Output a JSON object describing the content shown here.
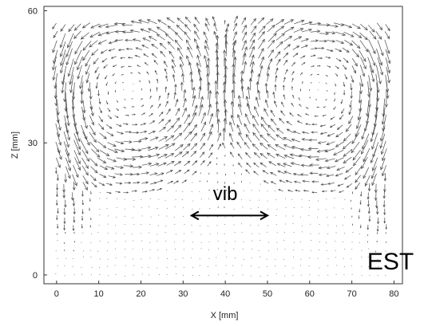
{
  "chart_data": {
    "type": "quiver",
    "xlabel": "X [mm]",
    "ylabel": "Z [mm]",
    "xlim": [
      -3,
      82
    ],
    "ylim": [
      -2,
      61
    ],
    "xticks": [
      "0",
      "10",
      "20",
      "30",
      "40",
      "50",
      "60",
      "70",
      "80"
    ],
    "yticks": [
      "0",
      "30",
      "60"
    ],
    "grid": false,
    "annotations": [
      {
        "text": "vib",
        "x": 40,
        "z": 17
      },
      {
        "text": "EST",
        "x": 75,
        "z": 2
      }
    ],
    "vibration_arrow": {
      "x_from": 32,
      "x_to": 50,
      "z": 13.5,
      "direction": "horizontal, bidirectional"
    },
    "field_description": "Velocity vector field; strongest vectors along both side walls and upper corners (two large counter-rotating vortices), weak near the bottom center.",
    "vortices": [
      {
        "name": "left",
        "center_x": 18,
        "center_z": 42,
        "radius_x": 16,
        "radius_z": 15,
        "sense": "counterclockwise"
      },
      {
        "name": "right",
        "center_x": 61,
        "center_z": 42,
        "radius_x": 16,
        "radius_z": 15,
        "sense": "clockwise"
      }
    ],
    "arrow_color": "#4a4a4a"
  }
}
